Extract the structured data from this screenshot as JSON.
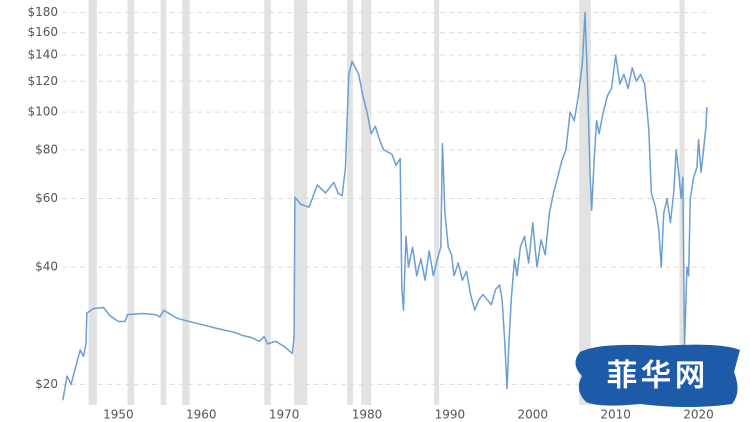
{
  "chart_data": {
    "type": "line",
    "log_scale": true,
    "grid": true,
    "color": "#6b9fd1",
    "band_color": "#e2e2e2",
    "xlim": [
      1943.2,
      2021.5
    ],
    "xticks": [
      1950,
      1960,
      1970,
      1980,
      1990,
      2000,
      2010,
      2020
    ],
    "ylim": [
      17.7,
      194
    ],
    "yticks": [
      {
        "value": 20,
        "label": "$20"
      },
      {
        "value": 40,
        "label": "$40"
      },
      {
        "value": 60,
        "label": "$60"
      },
      {
        "value": 80,
        "label": "$80"
      },
      {
        "value": 100,
        "label": "$100"
      },
      {
        "value": 120,
        "label": "$120"
      },
      {
        "value": 140,
        "label": "$140"
      },
      {
        "value": 160,
        "label": "$160"
      },
      {
        "value": 180,
        "label": "$180"
      }
    ],
    "shaded_periods": [
      [
        1946.4,
        1947.4
      ],
      [
        1951.1,
        1951.9
      ],
      [
        1955.1,
        1955.8
      ],
      [
        1957.7,
        1958.6
      ],
      [
        1967.6,
        1968.4
      ],
      [
        1971.2,
        1972.8
      ],
      [
        1977.6,
        1978.3
      ],
      [
        1979.3,
        1980.5
      ],
      [
        1988.1,
        1988.7
      ],
      [
        2005.6,
        2007.0
      ],
      [
        2017.7,
        2018.3
      ]
    ],
    "x": [
      1943.3,
      1943.8,
      1944.3,
      1944.8,
      1945.4,
      1945.8,
      1946.1,
      1946.2,
      1947,
      1948.2,
      1949,
      1950,
      1950.8,
      1951.1,
      1953,
      1954.5,
      1955,
      1955.5,
      1956,
      1957,
      1958,
      1960,
      1962,
      1964,
      1965,
      1966,
      1967,
      1967.6,
      1968,
      1969,
      1970,
      1971,
      1971.2,
      1971.3,
      1972,
      1973,
      1974,
      1975,
      1976,
      1976.5,
      1977,
      1977.4,
      1977.8,
      1978.2,
      1978.6,
      1979,
      1979.5,
      1980,
      1980.5,
      1981,
      1981.5,
      1982,
      1983,
      1983.5,
      1984,
      1984.2,
      1984.4,
      1984.7,
      1985,
      1985.5,
      1986,
      1986.5,
      1987,
      1987.5,
      1988,
      1988.5,
      1988.9,
      1989.1,
      1989.4,
      1989.8,
      1990.2,
      1990.5,
      1991,
      1991.5,
      1992,
      1992.5,
      1993,
      1993.5,
      1994,
      1995,
      1995.5,
      1996,
      1996.3,
      1996.6,
      1996.9,
      1997.1,
      1997.4,
      1997.8,
      1998.1,
      1998.5,
      1999,
      1999.5,
      2000,
      2000.5,
      2001,
      2001.5,
      2002,
      2002.5,
      2003,
      2003.5,
      2004,
      2004.5,
      2005,
      2005.5,
      2006,
      2006.3,
      2006.6,
      2006.9,
      2007.1,
      2007.4,
      2007.7,
      2008,
      2008.5,
      2009,
      2009.5,
      2010,
      2010.5,
      2011,
      2011.5,
      2012,
      2012.5,
      2013,
      2013.5,
      2014,
      2014.3,
      2014.8,
      2015.2,
      2015.5,
      2015.8,
      2016.2,
      2016.6,
      2017,
      2017.3,
      2017.6,
      2017.9,
      2018.1,
      2018.3,
      2018.6,
      2018.8,
      2019,
      2019.4,
      2019.8,
      2020,
      2020.3,
      2020.6,
      2020.9,
      2021
    ],
    "values": [
      18.2,
      21,
      20,
      22,
      24.5,
      23.6,
      25.5,
      30.5,
      31.3,
      31.5,
      30,
      29,
      29,
      30.2,
      30.4,
      30.2,
      29.8,
      31,
      30.5,
      29.6,
      29.2,
      28.5,
      27.8,
      27.2,
      26.7,
      26.4,
      25.8,
      26.5,
      25.4,
      25.8,
      25,
      24,
      26.5,
      60.5,
      58,
      57,
      65,
      62,
      66,
      62,
      61,
      72,
      125,
      135,
      130,
      125,
      110,
      100,
      88,
      92,
      85,
      80,
      78,
      73,
      76,
      35,
      31,
      48,
      40,
      45,
      38,
      42,
      37,
      44,
      38,
      42,
      45,
      83,
      55,
      45,
      43,
      38,
      41,
      37,
      39,
      34,
      31,
      33,
      34,
      32,
      35,
      36,
      33,
      26,
      19.5,
      25,
      33,
      42,
      38,
      45,
      48,
      41,
      52,
      40,
      47,
      43,
      55,
      62,
      68,
      75,
      80,
      100,
      95,
      110,
      135,
      180,
      120,
      70,
      56,
      75,
      95,
      88,
      100,
      110,
      115,
      140,
      118,
      125,
      115,
      130,
      120,
      125,
      118,
      90,
      62,
      57,
      50,
      40,
      55,
      60,
      52,
      62,
      80,
      70,
      60,
      68,
      25,
      40,
      38,
      60,
      68,
      72,
      85,
      70,
      80,
      92,
      103
    ]
  },
  "watermark": "菲华网"
}
